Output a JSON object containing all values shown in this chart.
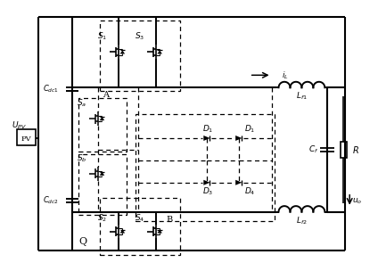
{
  "bg_color": "#ffffff",
  "figsize": [
    4.24,
    3.04
  ],
  "dpi": 100,
  "labels": {
    "upv": "$U_{PV}$",
    "pv": "PV",
    "cdc1": "$C_{dc1}$",
    "cdc2": "$C_{dc2}$",
    "A": "A",
    "B": "B",
    "Q": "Q",
    "S1": "$S_1$",
    "S2": "$S_2$",
    "S3": "$S_3$",
    "S4": "$S_4$",
    "Sa": "$S_a$",
    "Sb": "$S_b$",
    "D1": "$D_1$",
    "D2": "$D_1$",
    "D3": "$D_3$",
    "D4": "$D_4$",
    "Lf1": "$L_{f1}$",
    "Lf2": "$L_{f2}$",
    "Cf": "$C_f$",
    "R": "$R$",
    "iL": "$i_L$",
    "uo": "$u_o$"
  }
}
